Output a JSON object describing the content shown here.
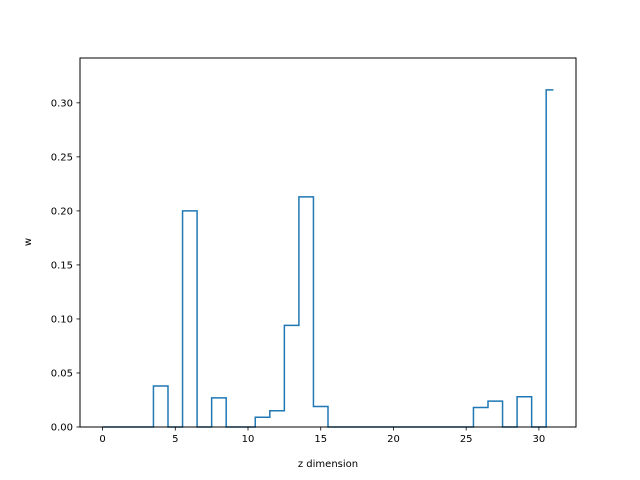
{
  "chart_data": {
    "type": "step",
    "xlabel": "z dimension",
    "ylabel": "w",
    "xlim": [
      -1.55,
      32.55
    ],
    "ylim": [
      0,
      0.3415
    ],
    "xticks": [
      0,
      5,
      10,
      15,
      20,
      25,
      30
    ],
    "yticks": [
      0.0,
      0.05,
      0.1,
      0.15,
      0.2,
      0.25,
      0.3
    ],
    "xtick_labels": [
      "0",
      "5",
      "10",
      "15",
      "20",
      "25",
      "30"
    ],
    "ytick_labels": [
      "0.00",
      "0.05",
      "0.10",
      "0.15",
      "0.20",
      "0.25",
      "0.30"
    ],
    "grid": false,
    "line_color": "#1f77b4",
    "x": [
      0,
      1,
      2,
      3,
      4,
      5,
      6,
      7,
      8,
      9,
      10,
      11,
      12,
      13,
      14,
      15,
      16,
      17,
      18,
      19,
      20,
      21,
      22,
      23,
      24,
      25,
      26,
      27,
      28,
      29,
      30,
      31
    ],
    "values": [
      0,
      0,
      0,
      0,
      0.038,
      0,
      0.2,
      0,
      0.027,
      0,
      0,
      0.009,
      0.015,
      0.094,
      0.213,
      0.019,
      0,
      0,
      0,
      0,
      0,
      0,
      0,
      0,
      0,
      0,
      0.018,
      0.024,
      0,
      0.028,
      0,
      0.312
    ]
  }
}
